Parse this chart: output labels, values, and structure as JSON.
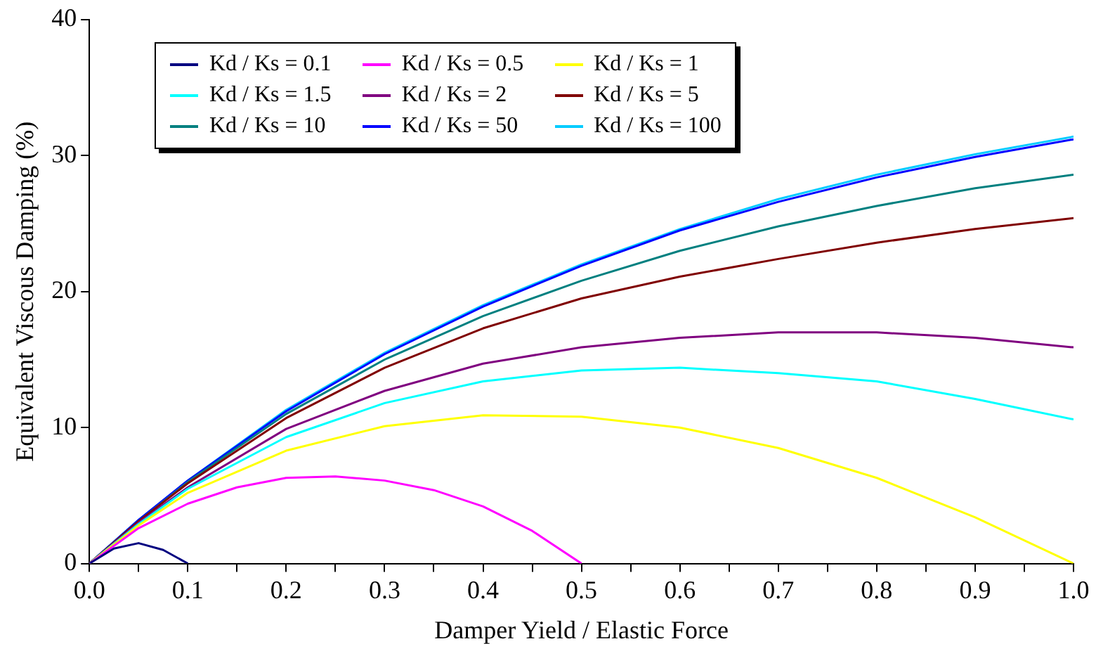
{
  "chart_data": {
    "type": "line",
    "xlabel": "Damper Yield / Elastic Force",
    "ylabel": "Equivalent Viscous Damping (%)",
    "xlim": [
      0,
      1
    ],
    "ylim": [
      0,
      40
    ],
    "xticks": [
      {
        "value": 0,
        "label": "0.0"
      },
      {
        "value": 0.05,
        "label": null
      },
      0.1,
      {
        "value": 0.15,
        "label": null
      },
      0.2,
      {
        "value": 0.25,
        "label": null
      },
      0.3,
      {
        "value": 0.35,
        "label": null
      },
      0.4,
      {
        "value": 0.45,
        "label": null
      },
      0.5,
      {
        "value": 0.55,
        "label": null
      },
      0.6,
      {
        "value": 0.65,
        "label": null
      },
      0.7,
      {
        "value": 0.75,
        "label": null
      },
      0.8,
      {
        "value": 0.85,
        "label": null
      },
      0.9,
      {
        "value": 0.95,
        "label": null
      },
      {
        "value": 1,
        "label": "1.0"
      }
    ],
    "yticks": [
      0,
      10,
      20,
      30,
      40
    ],
    "grid": false,
    "legend": "top left",
    "marker": "none",
    "line_style": "solid",
    "series": [
      {
        "name": "Kd / Ks = 0.1",
        "color": "#000080",
        "x": [
          0,
          0.025,
          0.05,
          0.075,
          0.1
        ],
        "values": [
          0,
          1.1,
          1.5,
          1.0,
          0
        ]
      },
      {
        "name": "Kd / Ks = 0.5",
        "color": "#ff00ff",
        "x": [
          0,
          0.05,
          0.1,
          0.15,
          0.2,
          0.25,
          0.3,
          0.35,
          0.4,
          0.45,
          0.5
        ],
        "values": [
          0,
          2.6,
          4.4,
          5.6,
          6.3,
          6.4,
          6.1,
          5.4,
          4.2,
          2.4,
          0
        ]
      },
      {
        "name": "Kd / Ks = 1",
        "color": "#ffff00",
        "x": [
          0,
          0.05,
          0.1,
          0.2,
          0.3,
          0.4,
          0.5,
          0.6,
          0.7,
          0.8,
          0.9,
          1
        ],
        "values": [
          0,
          2.8,
          5.2,
          8.3,
          10.1,
          10.9,
          10.8,
          10.0,
          8.5,
          6.3,
          3.4,
          0
        ]
      },
      {
        "name": "Kd / Ks = 1.5",
        "color": "#00ffff",
        "x": [
          0,
          0.05,
          0.1,
          0.2,
          0.3,
          0.4,
          0.5,
          0.6,
          0.7,
          0.8,
          0.9,
          1
        ],
        "values": [
          0,
          2.9,
          5.5,
          9.3,
          11.8,
          13.4,
          14.2,
          14.4,
          14.0,
          13.4,
          12.1,
          10.6
        ]
      },
      {
        "name": "Kd / Ks = 2",
        "color": "#800080",
        "x": [
          0,
          0.05,
          0.1,
          0.2,
          0.3,
          0.4,
          0.5,
          0.6,
          0.7,
          0.8,
          0.9,
          1
        ],
        "values": [
          0,
          3.0,
          5.6,
          9.9,
          12.7,
          14.7,
          15.9,
          16.6,
          17.0,
          17.0,
          16.6,
          15.9
        ]
      },
      {
        "name": "Kd / Ks = 5",
        "color": "#800000",
        "x": [
          0,
          0.05,
          0.1,
          0.2,
          0.3,
          0.4,
          0.5,
          0.6,
          0.7,
          0.8,
          0.9,
          1
        ],
        "values": [
          0,
          3.1,
          5.9,
          10.7,
          14.4,
          17.3,
          19.5,
          21.1,
          22.4,
          23.6,
          24.6,
          25.4
        ]
      },
      {
        "name": "Kd / Ks = 10",
        "color": "#008080",
        "x": [
          0,
          0.05,
          0.1,
          0.2,
          0.3,
          0.4,
          0.5,
          0.6,
          0.7,
          0.8,
          0.9,
          1
        ],
        "values": [
          0,
          3.1,
          6.0,
          11.0,
          15.0,
          18.2,
          20.8,
          23.0,
          24.8,
          26.3,
          27.6,
          28.6
        ]
      },
      {
        "name": "Kd / Ks = 50",
        "color": "#0000ff",
        "x": [
          0,
          0.05,
          0.1,
          0.2,
          0.3,
          0.4,
          0.5,
          0.6,
          0.7,
          0.8,
          0.9,
          1
        ],
        "values": [
          0,
          3.2,
          6.1,
          11.2,
          15.4,
          18.9,
          21.9,
          24.5,
          26.6,
          28.4,
          29.9,
          31.2
        ]
      },
      {
        "name": "Kd / Ks = 100",
        "color": "#00ccff",
        "x": [
          0,
          0.05,
          0.1,
          0.2,
          0.3,
          0.4,
          0.5,
          0.6,
          0.7,
          0.8,
          0.9,
          1
        ],
        "values": [
          0,
          3.2,
          6.1,
          11.3,
          15.5,
          19.0,
          22.0,
          24.6,
          26.8,
          28.6,
          30.1,
          31.4
        ]
      }
    ]
  }
}
